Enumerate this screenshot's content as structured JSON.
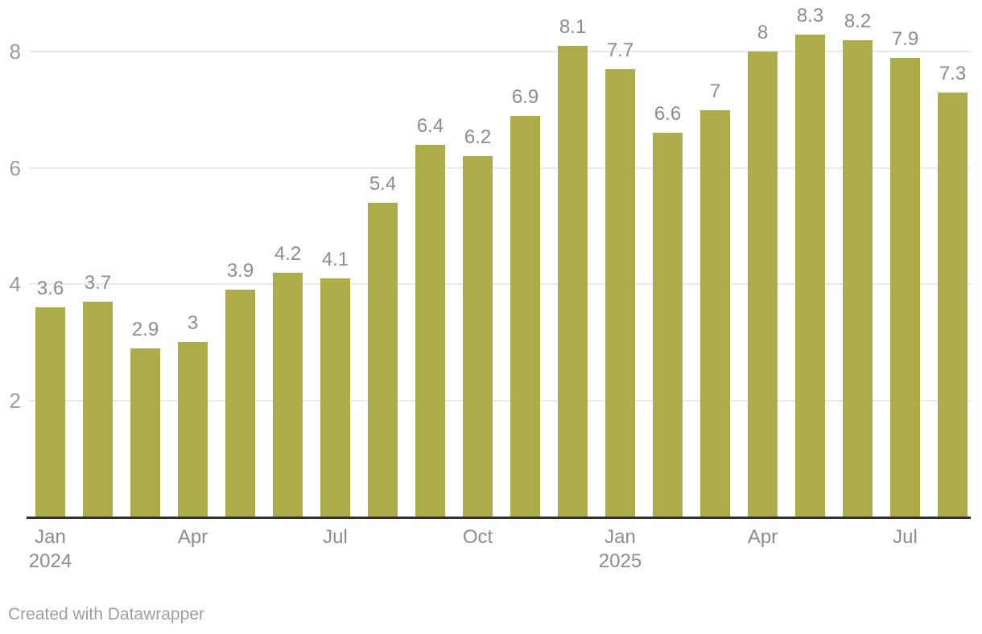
{
  "chart_data": {
    "type": "bar",
    "title": "",
    "categories": [
      "Jan 2024",
      "Feb 2024",
      "Mar 2024",
      "Apr 2024",
      "May 2024",
      "Jun 2024",
      "Jul 2024",
      "Aug 2024",
      "Sep 2024",
      "Oct 2024",
      "Nov 2024",
      "Dec 2024",
      "Jan 2025",
      "Feb 2025",
      "Mar 2025",
      "Apr 2025",
      "May 2025",
      "Jun 2025",
      "Jul 2025",
      "Aug 2025"
    ],
    "values": [
      3.6,
      3.7,
      2.9,
      3,
      3.9,
      4.2,
      4.1,
      5.4,
      6.4,
      6.2,
      6.9,
      8.1,
      7.7,
      6.6,
      7,
      8,
      8.3,
      8.2,
      7.9,
      7.3
    ],
    "value_labels": [
      "3.6",
      "3.7",
      "2.9",
      "3",
      "3.9",
      "4.2",
      "4.1",
      "5.4",
      "6.4",
      "6.2",
      "6.9",
      "8.1",
      "7.7",
      "6.6",
      "7",
      "8",
      "8.3",
      "8.2",
      "7.9",
      "7.3"
    ],
    "x_ticks": [
      {
        "index": 0,
        "label": "Jan",
        "sublabel": "2024"
      },
      {
        "index": 3,
        "label": "Apr",
        "sublabel": ""
      },
      {
        "index": 6,
        "label": "Jul",
        "sublabel": ""
      },
      {
        "index": 9,
        "label": "Oct",
        "sublabel": ""
      },
      {
        "index": 12,
        "label": "Jan",
        "sublabel": "2025"
      },
      {
        "index": 15,
        "label": "Apr",
        "sublabel": ""
      },
      {
        "index": 18,
        "label": "Jul",
        "sublabel": ""
      }
    ],
    "y_ticks": [
      2,
      4,
      6,
      8
    ],
    "ylim": [
      0,
      8.8
    ],
    "grid": true,
    "legend": "none",
    "colors": {
      "bar": "#acad4a",
      "grid": "#e9e9e9",
      "axis_line": "#303030",
      "value_label": "#8c8c8c",
      "x_tick_label": "#8c8c8c",
      "y_tick_label": "#9c9c9c",
      "footer": "#9e9e9e"
    }
  },
  "footer": {
    "attribution": "Created with Datawrapper"
  }
}
